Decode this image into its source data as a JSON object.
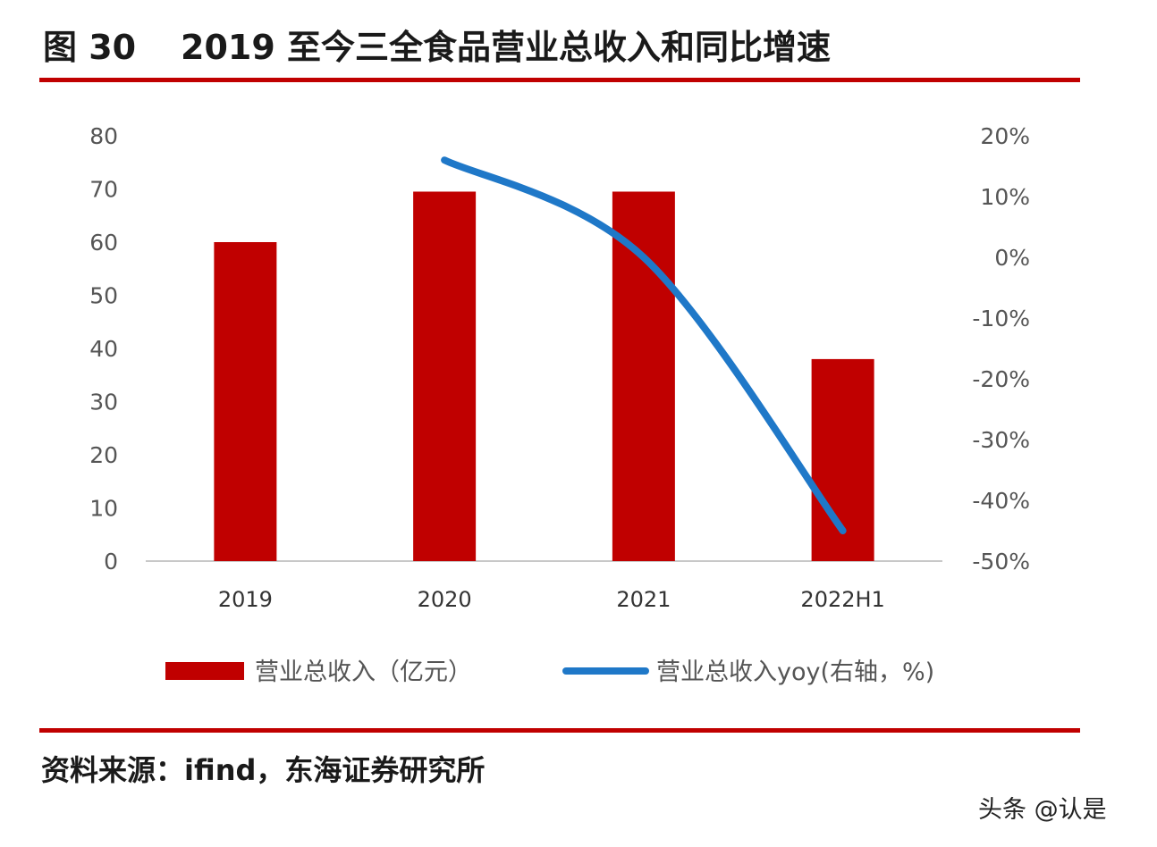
{
  "header": {
    "figure_label": "图 30",
    "title": "2019 至今三全食品营业总收入和同比增速"
  },
  "chart_data": {
    "type": "bar",
    "title": "2019 至今三全食品营业总收入和同比增速",
    "categories": [
      "2019",
      "2020",
      "2021",
      "2022H1"
    ],
    "series": [
      {
        "name": "营业总收入（亿元）",
        "type": "bar",
        "axis": "left",
        "color": "#c00000",
        "values": [
          60,
          69.5,
          69.5,
          38
        ]
      },
      {
        "name": "营业总收入yoy(右轴，%)",
        "type": "line",
        "axis": "right",
        "color": "#1f78c8",
        "values": [
          null,
          16,
          0,
          -45
        ]
      }
    ],
    "left_axis": {
      "min": 0,
      "max": 80,
      "step": 10,
      "tick_labels": [
        "0",
        "10",
        "20",
        "30",
        "40",
        "50",
        "60",
        "70",
        "80"
      ]
    },
    "right_axis": {
      "min": -50,
      "max": 20,
      "step": 10,
      "tick_labels": [
        "-50%",
        "-40%",
        "-30%",
        "-20%",
        "-10%",
        "0%",
        "10%",
        "20%"
      ]
    },
    "xlabel": "",
    "ylabel": "",
    "legend_position": "bottom",
    "grid": false
  },
  "footer": {
    "source": "资料来源：ifind，东海证券研究所",
    "watermark": "头条 @认是"
  }
}
